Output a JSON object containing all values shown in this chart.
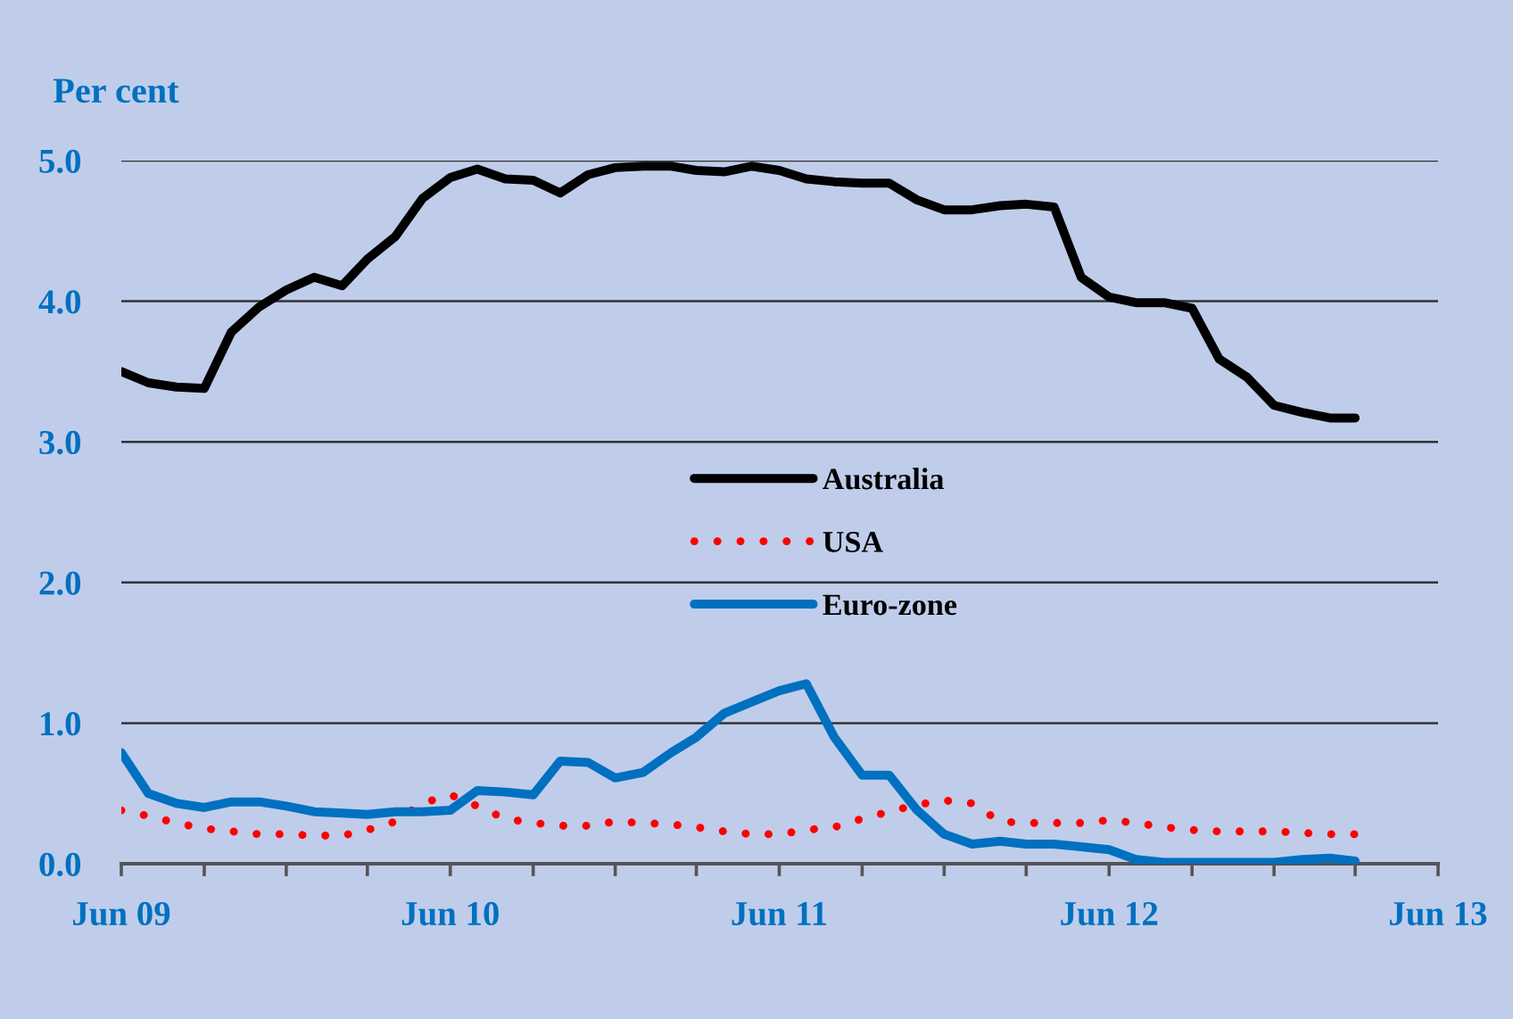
{
  "chart_data": {
    "type": "line",
    "ylabel": "Per cent",
    "x": [
      "2009-06",
      "2009-07",
      "2009-08",
      "2009-09",
      "2009-10",
      "2009-11",
      "2009-12",
      "2010-01",
      "2010-02",
      "2010-03",
      "2010-04",
      "2010-05",
      "2010-06",
      "2010-07",
      "2010-08",
      "2010-09",
      "2010-10",
      "2010-11",
      "2010-12",
      "2011-01",
      "2011-02",
      "2011-03",
      "2011-04",
      "2011-05",
      "2011-06",
      "2011-07",
      "2011-08",
      "2011-09",
      "2011-10",
      "2011-11",
      "2011-12",
      "2012-01",
      "2012-02",
      "2012-03",
      "2012-04",
      "2012-05",
      "2012-06",
      "2012-07",
      "2012-08",
      "2012-09",
      "2012-10",
      "2012-11",
      "2012-12",
      "2013-01",
      "2013-02",
      "2013-03"
    ],
    "xlim": [
      "2009-06",
      "2013-06"
    ],
    "xticks": [
      {
        "value": "2009-06",
        "label": "Jun 09"
      },
      {
        "value": "2009-09",
        "label": null
      },
      {
        "value": "2009-12",
        "label": null
      },
      {
        "value": "2010-03",
        "label": null
      },
      {
        "value": "2010-06",
        "label": "Jun 10"
      },
      {
        "value": "2010-09",
        "label": null
      },
      {
        "value": "2010-12",
        "label": null
      },
      {
        "value": "2011-03",
        "label": null
      },
      {
        "value": "2011-06",
        "label": "Jun 11"
      },
      {
        "value": "2011-09",
        "label": null
      },
      {
        "value": "2011-12",
        "label": null
      },
      {
        "value": "2012-03",
        "label": null
      },
      {
        "value": "2012-06",
        "label": "Jun 12"
      },
      {
        "value": "2012-09",
        "label": null
      },
      {
        "value": "2012-12",
        "label": null
      },
      {
        "value": "2013-03",
        "label": null
      },
      {
        "value": "2013-06",
        "label": "Jun 13"
      }
    ],
    "ylim": [
      0,
      5
    ],
    "yticks": [
      {
        "value": 0,
        "label": "0.0"
      },
      {
        "value": 1,
        "label": "1.0"
      },
      {
        "value": 2,
        "label": "2.0"
      },
      {
        "value": 3,
        "label": "3.0"
      },
      {
        "value": 4,
        "label": "4.0"
      },
      {
        "value": 5,
        "label": "5.0"
      }
    ],
    "grid": "y",
    "legend": "center",
    "series": [
      {
        "name": "Australia",
        "color": "#000000",
        "values": [
          3.5,
          3.42,
          3.39,
          3.38,
          3.78,
          3.96,
          4.08,
          4.17,
          4.11,
          4.3,
          4.46,
          4.73,
          4.88,
          4.94,
          4.87,
          4.86,
          4.77,
          4.9,
          4.95,
          4.96,
          4.96,
          4.93,
          4.92,
          4.96,
          4.93,
          4.87,
          4.85,
          4.84,
          4.84,
          4.72,
          4.65,
          4.65,
          4.68,
          4.69,
          4.67,
          4.17,
          4.03,
          3.99,
          3.99,
          3.95,
          3.59,
          3.46,
          3.26,
          3.21,
          3.17,
          3.17
        ]
      },
      {
        "name": "USA",
        "color": "#ff0000",
        "line_style": "dotted",
        "values": [
          0.38,
          0.34,
          0.29,
          0.25,
          0.23,
          0.21,
          0.21,
          0.2,
          0.2,
          0.24,
          0.3,
          0.43,
          0.49,
          0.41,
          0.32,
          0.29,
          0.27,
          0.27,
          0.3,
          0.29,
          0.28,
          0.26,
          0.23,
          0.21,
          0.21,
          0.24,
          0.26,
          0.32,
          0.37,
          0.42,
          0.45,
          0.43,
          0.3,
          0.29,
          0.29,
          0.29,
          0.31,
          0.29,
          0.26,
          0.24,
          0.23,
          0.23,
          0.23,
          0.22,
          0.21,
          0.21
        ]
      },
      {
        "name": "Euro-zone",
        "color": "#0070c0",
        "values": [
          0.79,
          0.5,
          0.43,
          0.4,
          0.44,
          0.44,
          0.41,
          0.37,
          0.36,
          0.35,
          0.37,
          0.37,
          0.38,
          0.52,
          0.51,
          0.49,
          0.73,
          0.72,
          0.61,
          0.65,
          0.79,
          0.9,
          1.07,
          1.15,
          1.23,
          1.28,
          0.9,
          0.63,
          0.63,
          0.38,
          0.21,
          0.14,
          0.16,
          0.14,
          0.14,
          0.12,
          0.1,
          0.03,
          0.01,
          0.01,
          0.01,
          0.01,
          0.01,
          0.03,
          0.04,
          0.02
        ]
      }
    ]
  }
}
